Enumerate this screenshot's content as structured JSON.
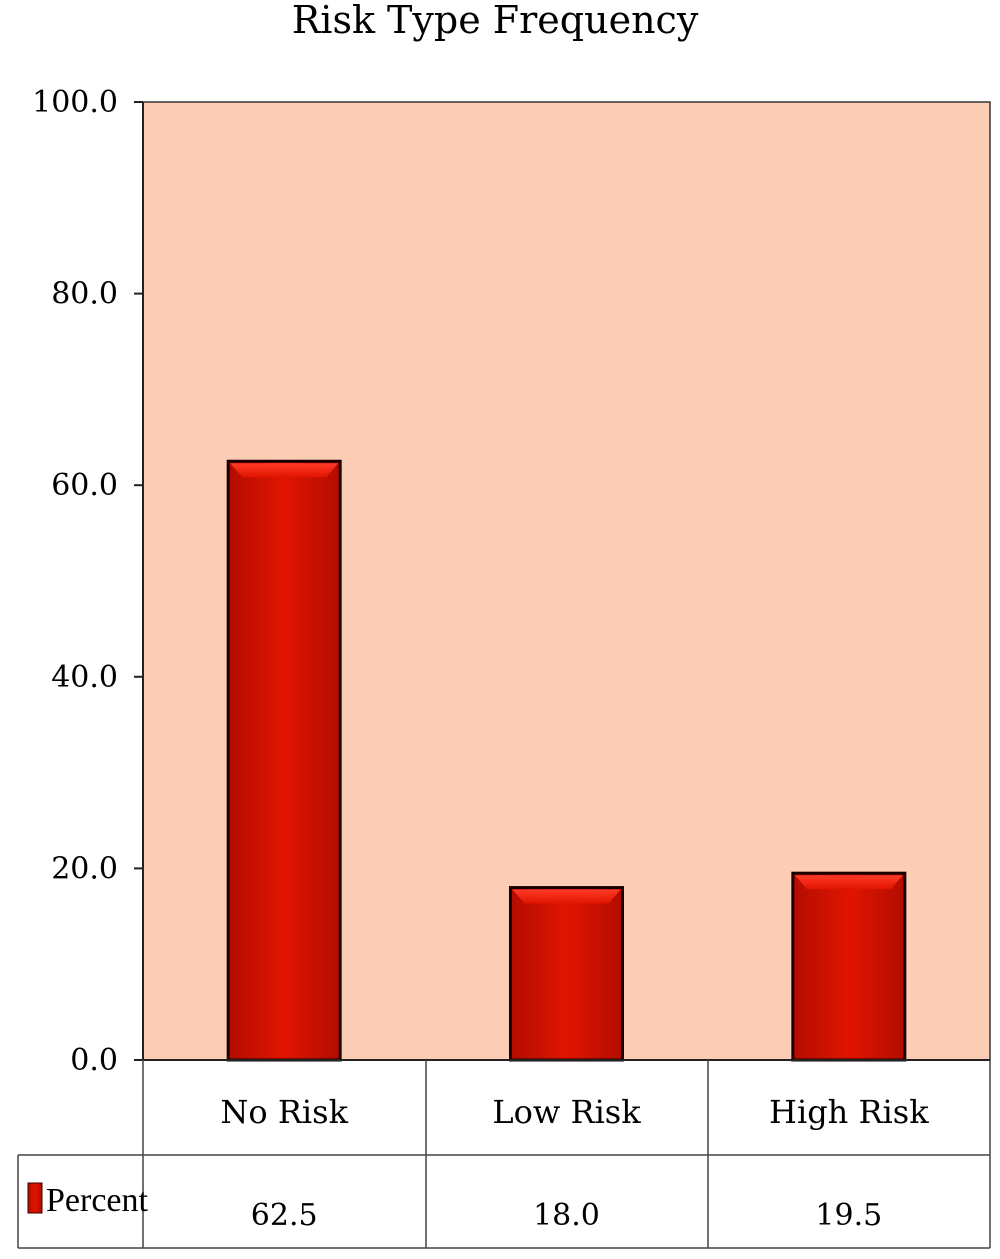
{
  "chart_data": {
    "type": "bar",
    "title": "Risk Type Frequency",
    "categories": [
      "No Risk",
      "Low Risk",
      "High Risk"
    ],
    "series": [
      {
        "name": "Percent",
        "values": [
          62.5,
          18.0,
          19.5
        ],
        "value_labels": [
          "62.5",
          "18.0",
          "19.5"
        ]
      }
    ],
    "ylim": [
      0,
      100
    ],
    "yticks": [
      "0.0",
      "20.0",
      "40.0",
      "60.0",
      "80.0",
      "100.0"
    ],
    "grid": false,
    "legend": "data-table-left",
    "colors": {
      "bar": "#dd1100",
      "bar_edge": "#1a0000",
      "plot_background": "#fccdb4"
    }
  }
}
